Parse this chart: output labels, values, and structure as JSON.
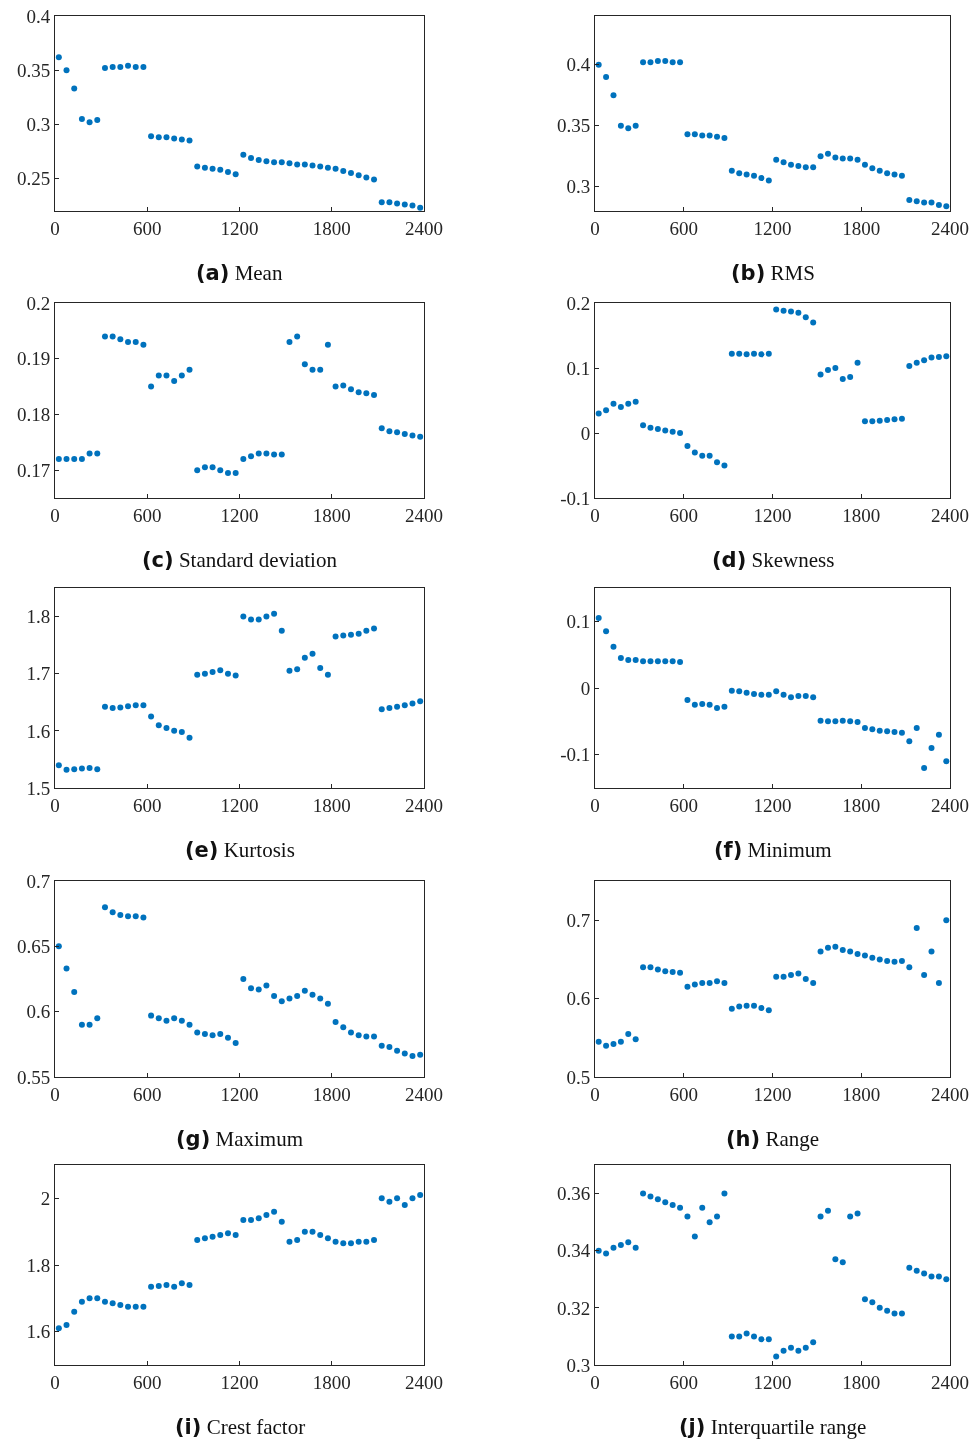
{
  "chart_data": [
    {
      "type": "scatter",
      "title": "(a) Mean",
      "grid": false,
      "xlim": [
        0,
        2400
      ],
      "xticks": [
        0,
        600,
        1200,
        1800,
        2400
      ],
      "ylim": [
        0.22,
        0.4
      ],
      "yticks": [
        0.25,
        0.3,
        0.35,
        0.4
      ],
      "x": [
        25,
        75,
        125,
        175,
        225,
        275,
        325,
        375,
        425,
        475,
        525,
        575,
        625,
        675,
        725,
        775,
        825,
        875,
        925,
        975,
        1025,
        1075,
        1125,
        1175,
        1225,
        1275,
        1325,
        1375,
        1425,
        1475,
        1525,
        1575,
        1625,
        1675,
        1725,
        1775,
        1825,
        1875,
        1925,
        1975,
        2025,
        2075,
        2125,
        2175,
        2225,
        2275,
        2325,
        2375
      ],
      "series": [
        {
          "color": "#0072bd",
          "values": [
            0.362,
            0.35,
            0.333,
            0.305,
            0.302,
            0.304,
            0.352,
            0.353,
            0.353,
            0.354,
            0.353,
            0.353,
            0.289,
            0.288,
            0.288,
            0.287,
            0.286,
            0.285,
            0.261,
            0.26,
            0.259,
            0.258,
            0.256,
            0.254,
            0.272,
            0.269,
            0.267,
            0.266,
            0.265,
            0.265,
            0.264,
            0.263,
            0.263,
            0.262,
            0.261,
            0.26,
            0.259,
            0.257,
            0.255,
            0.253,
            0.251,
            0.249,
            0.228,
            0.228,
            0.227,
            0.226,
            0.225,
            0.223
          ]
        }
      ]
    },
    {
      "type": "scatter",
      "title": "(b) RMS",
      "grid": false,
      "xlim": [
        0,
        2400
      ],
      "xticks": [
        0,
        600,
        1200,
        1800,
        2400
      ],
      "ylim": [
        0.28,
        0.44
      ],
      "yticks": [
        0.3,
        0.35,
        0.4
      ],
      "x": [
        25,
        75,
        125,
        175,
        225,
        275,
        325,
        375,
        425,
        475,
        525,
        575,
        625,
        675,
        725,
        775,
        825,
        875,
        925,
        975,
        1025,
        1075,
        1125,
        1175,
        1225,
        1275,
        1325,
        1375,
        1425,
        1475,
        1525,
        1575,
        1625,
        1675,
        1725,
        1775,
        1825,
        1875,
        1925,
        1975,
        2025,
        2075,
        2125,
        2175,
        2225,
        2275,
        2325,
        2375
      ],
      "series": [
        {
          "color": "#0072bd",
          "values": [
            0.4,
            0.39,
            0.375,
            0.35,
            0.348,
            0.35,
            0.402,
            0.402,
            0.403,
            0.403,
            0.402,
            0.402,
            0.343,
            0.343,
            0.342,
            0.342,
            0.341,
            0.34,
            0.313,
            0.311,
            0.31,
            0.309,
            0.307,
            0.305,
            0.322,
            0.32,
            0.318,
            0.317,
            0.316,
            0.316,
            0.325,
            0.327,
            0.324,
            0.323,
            0.323,
            0.322,
            0.318,
            0.315,
            0.313,
            0.311,
            0.31,
            0.309,
            0.289,
            0.288,
            0.287,
            0.287,
            0.285,
            0.284
          ]
        }
      ]
    },
    {
      "type": "scatter",
      "title": "(c) Standard deviation",
      "grid": false,
      "xlim": [
        0,
        2400
      ],
      "xticks": [
        0,
        600,
        1200,
        1800,
        2400
      ],
      "ylim": [
        0.165,
        0.2
      ],
      "yticks": [
        0.17,
        0.18,
        0.19,
        0.2
      ],
      "x": [
        25,
        75,
        125,
        175,
        225,
        275,
        325,
        375,
        425,
        475,
        525,
        575,
        625,
        675,
        725,
        775,
        825,
        875,
        925,
        975,
        1025,
        1075,
        1125,
        1175,
        1225,
        1275,
        1325,
        1375,
        1425,
        1475,
        1525,
        1575,
        1625,
        1675,
        1725,
        1775,
        1825,
        1875,
        1925,
        1975,
        2025,
        2075,
        2125,
        2175,
        2225,
        2275,
        2325,
        2375
      ],
      "series": [
        {
          "color": "#0072bd",
          "values": [
            0.172,
            0.172,
            0.172,
            0.172,
            0.173,
            0.173,
            0.194,
            0.194,
            0.1935,
            0.193,
            0.193,
            0.1925,
            0.185,
            0.187,
            0.187,
            0.186,
            0.187,
            0.188,
            0.17,
            0.1705,
            0.1705,
            0.17,
            0.1695,
            0.1695,
            0.172,
            0.1725,
            0.173,
            0.173,
            0.1728,
            0.1728,
            0.193,
            0.194,
            0.189,
            0.188,
            0.188,
            0.1925,
            0.185,
            0.1852,
            0.1845,
            0.184,
            0.1838,
            0.1835,
            0.1775,
            0.177,
            0.1768,
            0.1765,
            0.1762,
            0.176
          ]
        }
      ]
    },
    {
      "type": "scatter",
      "title": "(d) Skewness",
      "grid": false,
      "xlim": [
        0,
        2400
      ],
      "xticks": [
        0,
        600,
        1200,
        1800,
        2400
      ],
      "ylim": [
        -0.1,
        0.2
      ],
      "yticks": [
        -0.1,
        0,
        0.1,
        0.2
      ],
      "x": [
        25,
        75,
        125,
        175,
        225,
        275,
        325,
        375,
        425,
        475,
        525,
        575,
        625,
        675,
        725,
        775,
        825,
        875,
        925,
        975,
        1025,
        1075,
        1125,
        1175,
        1225,
        1275,
        1325,
        1375,
        1425,
        1475,
        1525,
        1575,
        1625,
        1675,
        1725,
        1775,
        1825,
        1875,
        1925,
        1975,
        2025,
        2075,
        2125,
        2175,
        2225,
        2275,
        2325,
        2375
      ],
      "series": [
        {
          "color": "#0072bd",
          "values": [
            0.03,
            0.035,
            0.045,
            0.04,
            0.045,
            0.048,
            0.012,
            0.008,
            0.006,
            0.004,
            0.002,
            0.0,
            -0.02,
            -0.03,
            -0.035,
            -0.035,
            -0.045,
            -0.05,
            0.122,
            0.122,
            0.121,
            0.122,
            0.121,
            0.122,
            0.19,
            0.188,
            0.187,
            0.185,
            0.178,
            0.17,
            0.09,
            0.097,
            0.1,
            0.083,
            0.086,
            0.108,
            0.018,
            0.018,
            0.019,
            0.02,
            0.021,
            0.022,
            0.103,
            0.108,
            0.112,
            0.116,
            0.117,
            0.118
          ]
        }
      ]
    },
    {
      "type": "scatter",
      "title": "(e) Kurtosis",
      "grid": false,
      "xlim": [
        0,
        2400
      ],
      "xticks": [
        0,
        600,
        1200,
        1800,
        2400
      ],
      "ylim": [
        1.5,
        1.85
      ],
      "yticks": [
        1.5,
        1.6,
        1.7,
        1.8
      ],
      "x": [
        25,
        75,
        125,
        175,
        225,
        275,
        325,
        375,
        425,
        475,
        525,
        575,
        625,
        675,
        725,
        775,
        825,
        875,
        925,
        975,
        1025,
        1075,
        1125,
        1175,
        1225,
        1275,
        1325,
        1375,
        1425,
        1475,
        1525,
        1575,
        1625,
        1675,
        1725,
        1775,
        1825,
        1875,
        1925,
        1975,
        2025,
        2075,
        2125,
        2175,
        2225,
        2275,
        2325,
        2375
      ],
      "series": [
        {
          "color": "#0072bd",
          "values": [
            1.54,
            1.532,
            1.533,
            1.534,
            1.535,
            1.533,
            1.642,
            1.64,
            1.641,
            1.643,
            1.645,
            1.645,
            1.625,
            1.61,
            1.605,
            1.6,
            1.598,
            1.588,
            1.698,
            1.7,
            1.703,
            1.706,
            1.7,
            1.697,
            1.8,
            1.795,
            1.795,
            1.8,
            1.805,
            1.775,
            1.705,
            1.708,
            1.728,
            1.735,
            1.71,
            1.698,
            1.765,
            1.767,
            1.768,
            1.77,
            1.775,
            1.779,
            1.638,
            1.64,
            1.642,
            1.645,
            1.648,
            1.652
          ]
        }
      ]
    },
    {
      "type": "scatter",
      "title": "(f) Minimum",
      "grid": false,
      "xlim": [
        0,
        2400
      ],
      "xticks": [
        0,
        600,
        1200,
        1800,
        2400
      ],
      "ylim": [
        -0.15,
        0.15
      ],
      "yticks": [
        -0.1,
        0,
        0.1
      ],
      "x": [
        25,
        75,
        125,
        175,
        225,
        275,
        325,
        375,
        425,
        475,
        525,
        575,
        625,
        675,
        725,
        775,
        825,
        875,
        925,
        975,
        1025,
        1075,
        1125,
        1175,
        1225,
        1275,
        1325,
        1375,
        1425,
        1475,
        1525,
        1575,
        1625,
        1675,
        1725,
        1775,
        1825,
        1875,
        1925,
        1975,
        2025,
        2075,
        2125,
        2175,
        2225,
        2275,
        2325,
        2375
      ],
      "series": [
        {
          "color": "#0072bd",
          "values": [
            0.105,
            0.085,
            0.062,
            0.045,
            0.042,
            0.042,
            0.04,
            0.04,
            0.04,
            0.04,
            0.04,
            0.039,
            -0.018,
            -0.025,
            -0.024,
            -0.025,
            -0.03,
            -0.028,
            -0.004,
            -0.005,
            -0.007,
            -0.009,
            -0.01,
            -0.01,
            -0.005,
            -0.01,
            -0.014,
            -0.012,
            -0.012,
            -0.014,
            -0.049,
            -0.05,
            -0.05,
            -0.049,
            -0.05,
            -0.051,
            -0.06,
            -0.062,
            -0.064,
            -0.065,
            -0.066,
            -0.067,
            -0.08,
            -0.06,
            -0.12,
            -0.09,
            -0.07,
            -0.11
          ]
        }
      ]
    },
    {
      "type": "scatter",
      "title": "(g) Maximum",
      "grid": false,
      "xlim": [
        0,
        2400
      ],
      "xticks": [
        0,
        600,
        1200,
        1800,
        2400
      ],
      "ylim": [
        0.55,
        0.7
      ],
      "yticks": [
        0.55,
        0.6,
        0.65,
        0.7
      ],
      "x": [
        25,
        75,
        125,
        175,
        225,
        275,
        325,
        375,
        425,
        475,
        525,
        575,
        625,
        675,
        725,
        775,
        825,
        875,
        925,
        975,
        1025,
        1075,
        1125,
        1175,
        1225,
        1275,
        1325,
        1375,
        1425,
        1475,
        1525,
        1575,
        1625,
        1675,
        1725,
        1775,
        1825,
        1875,
        1925,
        1975,
        2025,
        2075,
        2125,
        2175,
        2225,
        2275,
        2325,
        2375
      ],
      "series": [
        {
          "color": "#0072bd",
          "values": [
            0.65,
            0.633,
            0.615,
            0.59,
            0.59,
            0.595,
            0.68,
            0.676,
            0.674,
            0.673,
            0.673,
            0.672,
            0.597,
            0.595,
            0.593,
            0.595,
            0.593,
            0.59,
            0.584,
            0.583,
            0.582,
            0.583,
            0.58,
            0.576,
            0.625,
            0.618,
            0.617,
            0.62,
            0.612,
            0.608,
            0.61,
            0.612,
            0.616,
            0.613,
            0.61,
            0.606,
            0.592,
            0.588,
            0.584,
            0.582,
            0.581,
            0.581,
            0.574,
            0.573,
            0.57,
            0.568,
            0.566,
            0.567
          ]
        }
      ]
    },
    {
      "type": "scatter",
      "title": "(h) Range",
      "grid": false,
      "xlim": [
        0,
        2400
      ],
      "xticks": [
        0,
        600,
        1200,
        1800,
        2400
      ],
      "ylim": [
        0.5,
        0.75
      ],
      "yticks": [
        0.5,
        0.6,
        0.7
      ],
      "x": [
        25,
        75,
        125,
        175,
        225,
        275,
        325,
        375,
        425,
        475,
        525,
        575,
        625,
        675,
        725,
        775,
        825,
        875,
        925,
        975,
        1025,
        1075,
        1125,
        1175,
        1225,
        1275,
        1325,
        1375,
        1425,
        1475,
        1525,
        1575,
        1625,
        1675,
        1725,
        1775,
        1825,
        1875,
        1925,
        1975,
        2025,
        2075,
        2125,
        2175,
        2225,
        2275,
        2325,
        2375
      ],
      "series": [
        {
          "color": "#0072bd",
          "values": [
            0.545,
            0.54,
            0.542,
            0.545,
            0.555,
            0.548,
            0.64,
            0.64,
            0.637,
            0.635,
            0.634,
            0.633,
            0.615,
            0.618,
            0.62,
            0.62,
            0.622,
            0.62,
            0.587,
            0.59,
            0.591,
            0.591,
            0.588,
            0.585,
            0.628,
            0.628,
            0.63,
            0.632,
            0.625,
            0.62,
            0.66,
            0.665,
            0.666,
            0.662,
            0.66,
            0.657,
            0.655,
            0.652,
            0.65,
            0.648,
            0.647,
            0.648,
            0.64,
            0.69,
            0.63,
            0.66,
            0.62,
            0.7
          ]
        }
      ]
    },
    {
      "type": "scatter",
      "title": "(i) Crest factor",
      "grid": false,
      "xlim": [
        0,
        2400
      ],
      "xticks": [
        0,
        600,
        1200,
        1800,
        2400
      ],
      "ylim": [
        1.5,
        2.1
      ],
      "yticks": [
        1.6,
        1.8,
        2
      ],
      "x": [
        25,
        75,
        125,
        175,
        225,
        275,
        325,
        375,
        425,
        475,
        525,
        575,
        625,
        675,
        725,
        775,
        825,
        875,
        925,
        975,
        1025,
        1075,
        1125,
        1175,
        1225,
        1275,
        1325,
        1375,
        1425,
        1475,
        1525,
        1575,
        1625,
        1675,
        1725,
        1775,
        1825,
        1875,
        1925,
        1975,
        2025,
        2075,
        2125,
        2175,
        2225,
        2275,
        2325,
        2375
      ],
      "series": [
        {
          "color": "#0072bd",
          "values": [
            1.61,
            1.62,
            1.66,
            1.69,
            1.7,
            1.7,
            1.69,
            1.685,
            1.68,
            1.675,
            1.675,
            1.675,
            1.735,
            1.737,
            1.74,
            1.735,
            1.745,
            1.74,
            1.875,
            1.88,
            1.885,
            1.89,
            1.895,
            1.89,
            1.935,
            1.935,
            1.94,
            1.95,
            1.96,
            1.93,
            1.87,
            1.875,
            1.9,
            1.9,
            1.89,
            1.88,
            1.87,
            1.865,
            1.865,
            1.87,
            1.87,
            1.875,
            2.0,
            1.99,
            2.0,
            1.98,
            2.0,
            2.01
          ]
        }
      ]
    },
    {
      "type": "scatter",
      "title": "(j) Interquartile range",
      "grid": false,
      "xlim": [
        0,
        2400
      ],
      "xticks": [
        0,
        600,
        1200,
        1800,
        2400
      ],
      "ylim": [
        0.3,
        0.37
      ],
      "yticks": [
        0.3,
        0.32,
        0.34,
        0.36
      ],
      "x": [
        25,
        75,
        125,
        175,
        225,
        275,
        325,
        375,
        425,
        475,
        525,
        575,
        625,
        675,
        725,
        775,
        825,
        875,
        925,
        975,
        1025,
        1075,
        1125,
        1175,
        1225,
        1275,
        1325,
        1375,
        1425,
        1475,
        1525,
        1575,
        1625,
        1675,
        1725,
        1775,
        1825,
        1875,
        1925,
        1975,
        2025,
        2075,
        2125,
        2175,
        2225,
        2275,
        2325,
        2375
      ],
      "series": [
        {
          "color": "#0072bd",
          "values": [
            0.34,
            0.339,
            0.341,
            0.342,
            0.343,
            0.341,
            0.36,
            0.359,
            0.358,
            0.357,
            0.356,
            0.355,
            0.352,
            0.345,
            0.355,
            0.35,
            0.352,
            0.36,
            0.31,
            0.31,
            0.311,
            0.31,
            0.309,
            0.309,
            0.303,
            0.305,
            0.306,
            0.305,
            0.306,
            0.308,
            0.352,
            0.354,
            0.337,
            0.336,
            0.352,
            0.353,
            0.323,
            0.322,
            0.32,
            0.319,
            0.318,
            0.318,
            0.334,
            0.333,
            0.332,
            0.331,
            0.331,
            0.33
          ]
        }
      ]
    }
  ]
}
